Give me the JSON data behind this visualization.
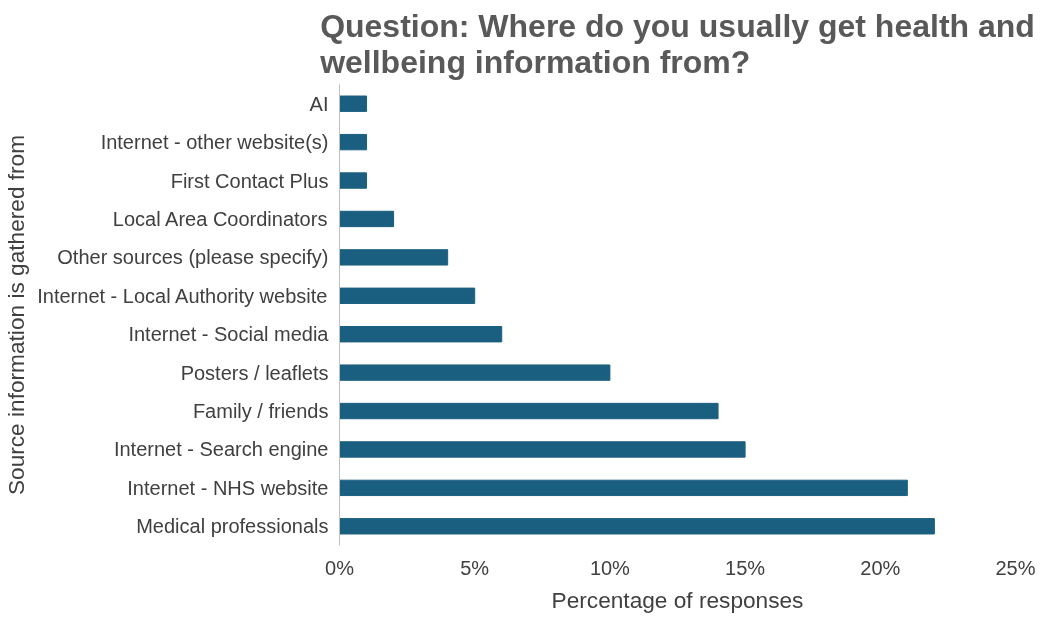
{
  "chart_data": {
    "type": "bar",
    "orientation": "horizontal",
    "title": "Question: Where do you usually get health and wellbeing information from?",
    "xlabel": "Percentage of responses",
    "ylabel": "Source information is gathered from",
    "categories": [
      "AI",
      "Internet - other website(s)",
      "First Contact Plus",
      "Local Area Coordinators",
      "Other sources (please specify)",
      "Internet - Local Authority website",
      "Internet - Social media",
      "Posters / leaflets",
      "Family / friends",
      "Internet - Search engine",
      "Internet - NHS website",
      "Medical professionals"
    ],
    "values": [
      1,
      1,
      1,
      2,
      4,
      5,
      6,
      10,
      14,
      15,
      21,
      22
    ],
    "color": "#1b5f80",
    "xlim": [
      0,
      25
    ],
    "xticks": [
      {
        "value": 0,
        "label": "0%"
      },
      {
        "value": 5,
        "label": "5%"
      },
      {
        "value": 10,
        "label": "10%"
      },
      {
        "value": 15,
        "label": "15%"
      },
      {
        "value": 20,
        "label": "20%"
      },
      {
        "value": 25,
        "label": "25%"
      }
    ],
    "grid": false
  }
}
